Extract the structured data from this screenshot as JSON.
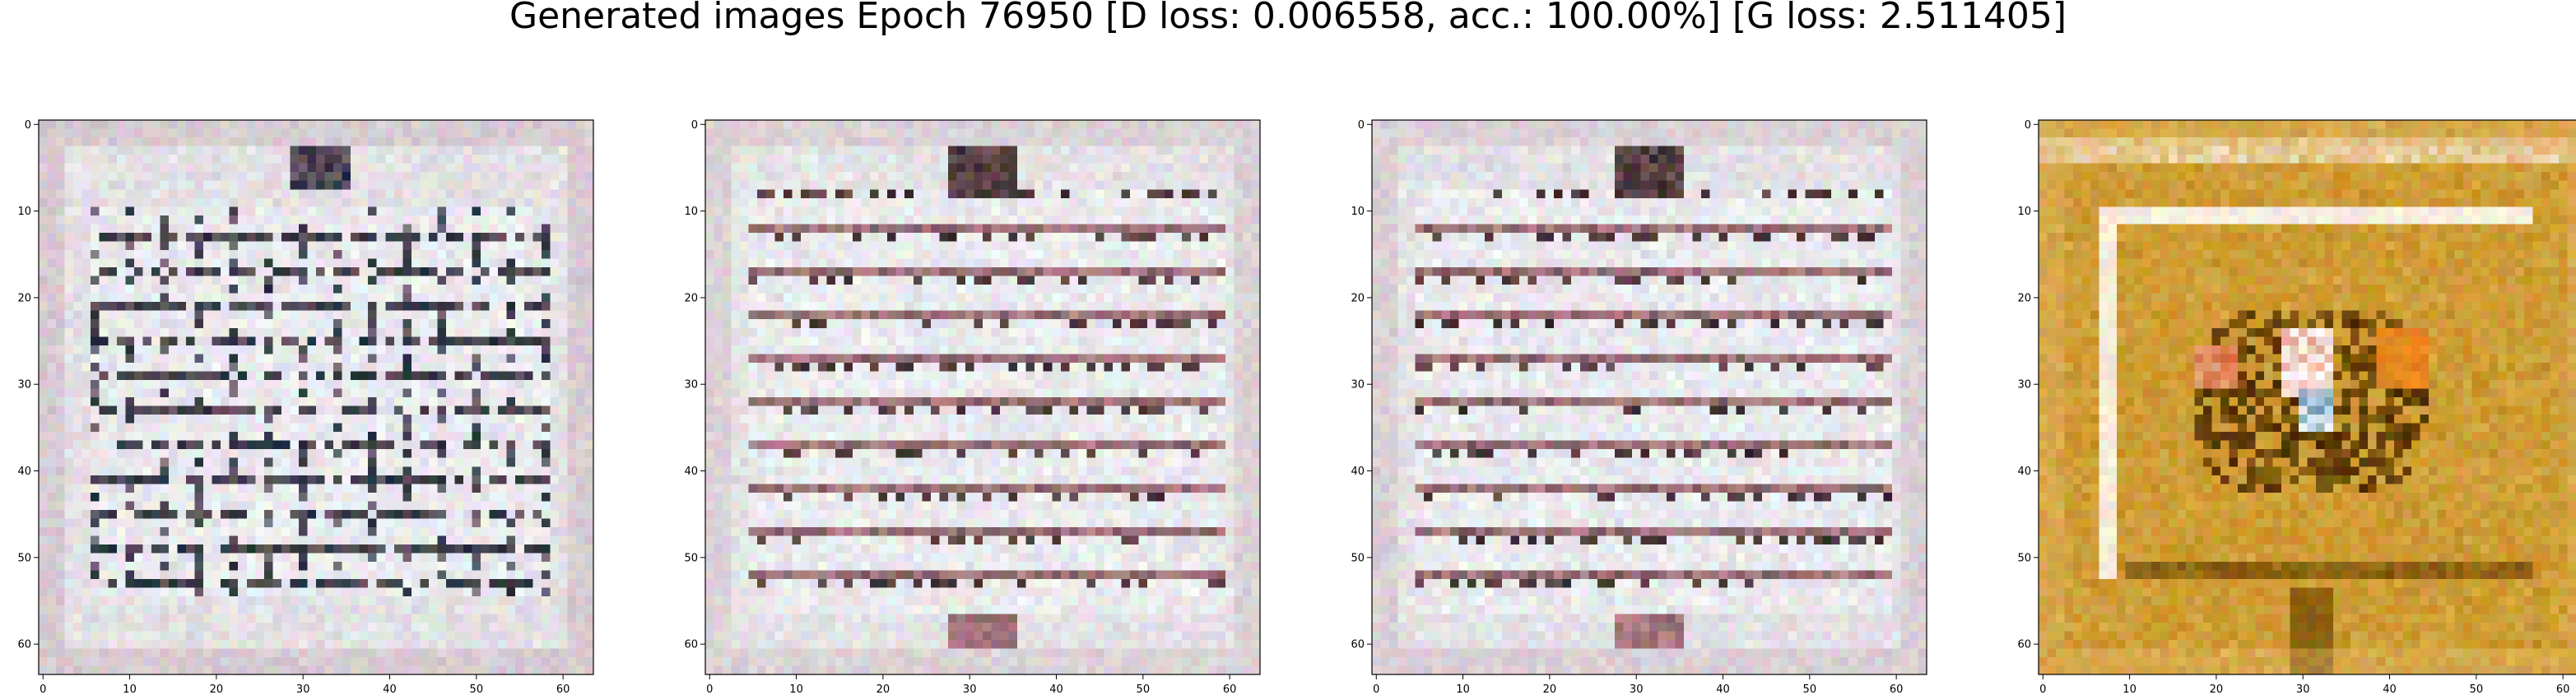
{
  "figure": {
    "title": "Generated images Epoch 76950 [D loss: 0.006558, acc.: 100.00%] [G loss: 2.511405]"
  },
  "axes": {
    "x_ticks": [
      "0",
      "10",
      "20",
      "30",
      "40",
      "50",
      "60"
    ],
    "y_ticks": [
      "0",
      "10",
      "20",
      "30",
      "40",
      "50",
      "60"
    ],
    "x_range": [
      0,
      63
    ],
    "y_range": [
      0,
      63
    ],
    "y_inverted": true
  },
  "panels": [
    {
      "name": "generated-image-1",
      "palette": {
        "base": "#d7cfd1",
        "light": "#eef0f5",
        "dark": "#1f2a36",
        "accent": "#b88a95",
        "tint": "#c5a9b7"
      },
      "pattern": "grid"
    },
    {
      "name": "generated-image-2",
      "palette": {
        "base": "#d9d2d2",
        "light": "#eff2f6",
        "dark": "#3a2b2b",
        "accent": "#b9878f",
        "tint": "#cdb8bf"
      },
      "pattern": "stripes"
    },
    {
      "name": "generated-image-3",
      "palette": {
        "base": "#d8d0d1",
        "light": "#eef1f6",
        "dark": "#2f2525",
        "accent": "#bb8790",
        "tint": "#ccb6be"
      },
      "pattern": "stripes"
    },
    {
      "name": "generated-image-4",
      "palette": {
        "base": "#c79323",
        "light": "#f1dfc0",
        "dark": "#4a2b00",
        "accent": "#d86a3c",
        "tint": "#e3b86c"
      },
      "pattern": "framed-figure"
    }
  ]
}
